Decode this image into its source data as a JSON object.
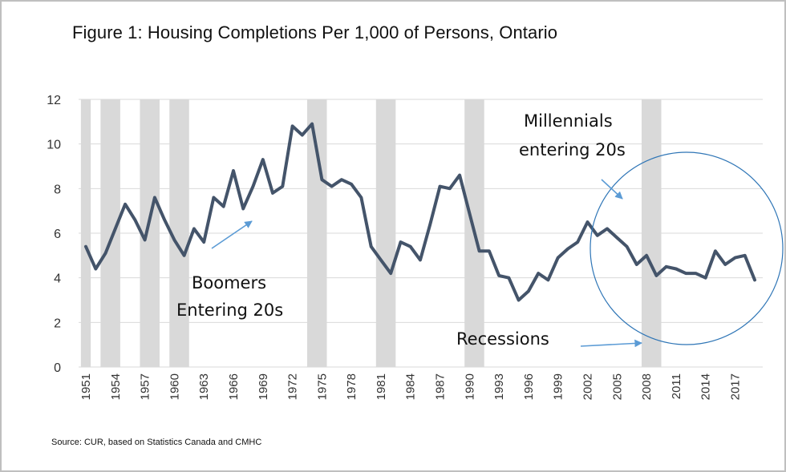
{
  "title": "Figure 1: Housing Completions Per 1,000 of Persons, Ontario",
  "source": "Source: CUR, based on Statistics Canada and CMHC",
  "colors": {
    "line": "#44546a",
    "recession_band": "#d9d9d9",
    "grid": "#d9d9d9",
    "annotation_arrow": "#5b9bd5",
    "circle": "#2e75b6"
  },
  "annotations": {
    "boomers_line1": "Boomers",
    "boomers_line2": "Entering 20s",
    "millennials_line1": "Millennials",
    "millennials_line2": "entering 20s",
    "recessions": "Recessions"
  },
  "chart_data": {
    "type": "line",
    "title": "Figure 1: Housing Completions Per 1,000 of Persons, Ontario",
    "xlabel": "",
    "ylabel": "",
    "ylim": [
      0,
      12
    ],
    "yticks": [
      0,
      2,
      4,
      6,
      8,
      10,
      12
    ],
    "xticks": [
      "1951",
      "1954",
      "1957",
      "1960",
      "1963",
      "1966",
      "1969",
      "1972",
      "1975",
      "1978",
      "1981",
      "1984",
      "1987",
      "1990",
      "1993",
      "1996",
      "1999",
      "2002",
      "2005",
      "2008",
      "2011",
      "2014",
      "2017"
    ],
    "grid": "horizontal",
    "recessions": [
      [
        1951,
        1951
      ],
      [
        1953,
        1954
      ],
      [
        1957,
        1958
      ],
      [
        1960,
        1961
      ],
      [
        1974,
        1975
      ],
      [
        1981,
        1982
      ],
      [
        1990,
        1991
      ],
      [
        2008,
        2009
      ]
    ],
    "series": [
      {
        "x": [
          1951,
          1952,
          1953,
          1954,
          1955,
          1956,
          1957,
          1958,
          1959,
          1960,
          1961,
          1962,
          1963,
          1964,
          1965,
          1966,
          1967,
          1968,
          1969,
          1970,
          1971,
          1972,
          1973,
          1974,
          1975,
          1976,
          1977,
          1978,
          1979,
          1980,
          1981,
          1982,
          1983,
          1984,
          1985,
          1986,
          1987,
          1988,
          1989,
          1990,
          1991,
          1992,
          1993,
          1994,
          1995,
          1996,
          1997,
          1998,
          1999,
          2000,
          2001,
          2002,
          2003,
          2004,
          2005,
          2006,
          2007,
          2008,
          2009,
          2010,
          2011,
          2012,
          2013,
          2014,
          2015,
          2016,
          2017,
          2018,
          2019
        ],
        "values": [
          5.4,
          4.4,
          5.1,
          6.2,
          7.3,
          6.6,
          5.7,
          7.6,
          6.6,
          5.7,
          5.0,
          6.2,
          5.6,
          7.6,
          7.2,
          8.8,
          7.1,
          8.1,
          9.3,
          7.8,
          8.1,
          10.8,
          10.4,
          10.9,
          8.4,
          8.1,
          8.4,
          8.2,
          7.6,
          5.4,
          4.8,
          4.2,
          5.6,
          5.4,
          4.8,
          6.4,
          8.1,
          8.0,
          8.6,
          6.9,
          5.2,
          5.2,
          4.1,
          4.0,
          3.0,
          3.4,
          4.2,
          3.9,
          4.9,
          5.3,
          5.6,
          6.5,
          5.9,
          6.2,
          5.8,
          5.4,
          4.6,
          5.0,
          4.1,
          4.5,
          4.4,
          4.2,
          4.2,
          4.0,
          5.2,
          4.6,
          4.9,
          5.0,
          3.9
        ]
      }
    ]
  }
}
